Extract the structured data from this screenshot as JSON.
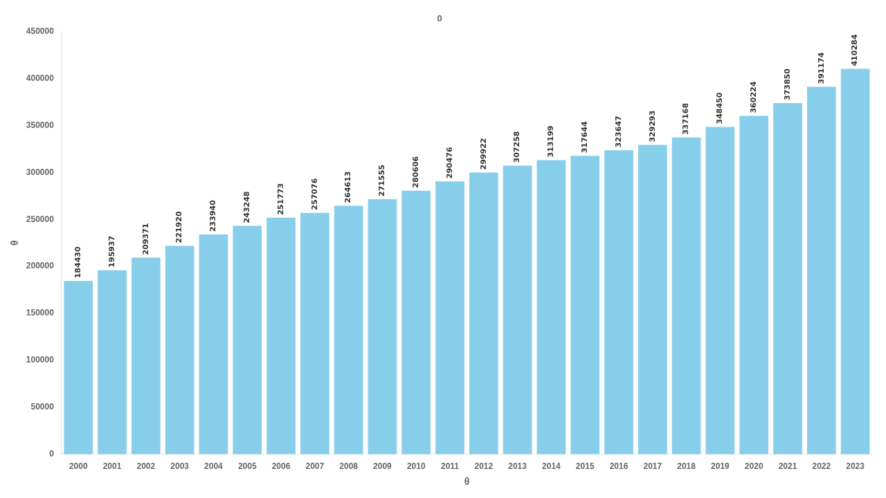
{
  "chart_data": {
    "type": "bar",
    "annotations": [
      "0"
    ],
    "xlabel": "θ",
    "ylabel": "θ",
    "categories": [
      "2000",
      "2001",
      "2002",
      "2003",
      "2004",
      "2005",
      "2006",
      "2007",
      "2008",
      "2009",
      "2010",
      "2011",
      "2012",
      "2013",
      "2014",
      "2015",
      "2016",
      "2017",
      "2018",
      "2019",
      "2020",
      "2021",
      "2022",
      "2023"
    ],
    "values": [
      184430,
      195937,
      209371,
      221920,
      233940,
      243248,
      251773,
      257076,
      264613,
      271555,
      280606,
      290476,
      299922,
      307258,
      313199,
      317644,
      323647,
      329293,
      337168,
      348450,
      360224,
      373850,
      391174,
      410284
    ],
    "color": "#87CEEB",
    "ylim": [
      0,
      450000
    ],
    "yticks": [
      0,
      50000,
      100000,
      150000,
      200000,
      250000,
      300000,
      350000,
      400000,
      450000
    ],
    "grid": false,
    "data_labels": true
  }
}
